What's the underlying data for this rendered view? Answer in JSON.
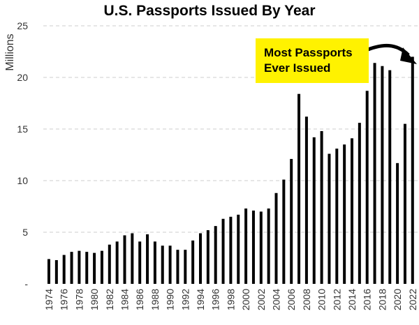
{
  "chart_data": {
    "type": "bar",
    "title": "U.S. Passports Issued By Year",
    "ylabel": "Millions",
    "xlabel": "",
    "ylim": [
      0,
      25
    ],
    "yticks": [
      "-",
      "5",
      "10",
      "15",
      "20",
      "25"
    ],
    "grid": true,
    "bar_color": "#000000",
    "grid_color": "#cccccc",
    "annotation": {
      "text_line1": "Most Passports",
      "text_line2": "Ever Issued",
      "background": "#fff200",
      "points_to": "2022"
    },
    "categories": [
      "1974",
      "1975",
      "1976",
      "1977",
      "1978",
      "1979",
      "1980",
      "1981",
      "1982",
      "1983",
      "1984",
      "1985",
      "1986",
      "1987",
      "1988",
      "1989",
      "1990",
      "1991",
      "1992",
      "1993",
      "1994",
      "1995",
      "1996",
      "1997",
      "1998",
      "1999",
      "2000",
      "2001",
      "2002",
      "2003",
      "2004",
      "2005",
      "2006",
      "2007",
      "2008",
      "2009",
      "2010",
      "2011",
      "2012",
      "2013",
      "2014",
      "2015",
      "2016",
      "2017",
      "2018",
      "2019",
      "2020",
      "2021",
      "2022"
    ],
    "xtick_labels": [
      "1974",
      "1976",
      "1978",
      "1980",
      "1982",
      "1984",
      "1986",
      "1988",
      "1990",
      "1992",
      "1994",
      "1996",
      "1998",
      "2000",
      "2002",
      "2004",
      "2006",
      "2008",
      "2010",
      "2012",
      "2014",
      "2016",
      "2018",
      "2020",
      "2022"
    ],
    "values": [
      2.4,
      2.3,
      2.8,
      3.1,
      3.2,
      3.1,
      3.0,
      3.2,
      3.8,
      4.1,
      4.7,
      4.9,
      4.1,
      4.8,
      4.1,
      3.7,
      3.7,
      3.3,
      3.3,
      4.2,
      4.9,
      5.2,
      5.6,
      6.3,
      6.5,
      6.7,
      7.3,
      7.1,
      7.0,
      7.3,
      8.8,
      10.1,
      12.1,
      18.4,
      16.2,
      14.2,
      14.8,
      12.6,
      13.1,
      13.5,
      14.1,
      15.6,
      18.7,
      21.4,
      21.1,
      20.7,
      11.7,
      15.5,
      22.0
    ]
  }
}
